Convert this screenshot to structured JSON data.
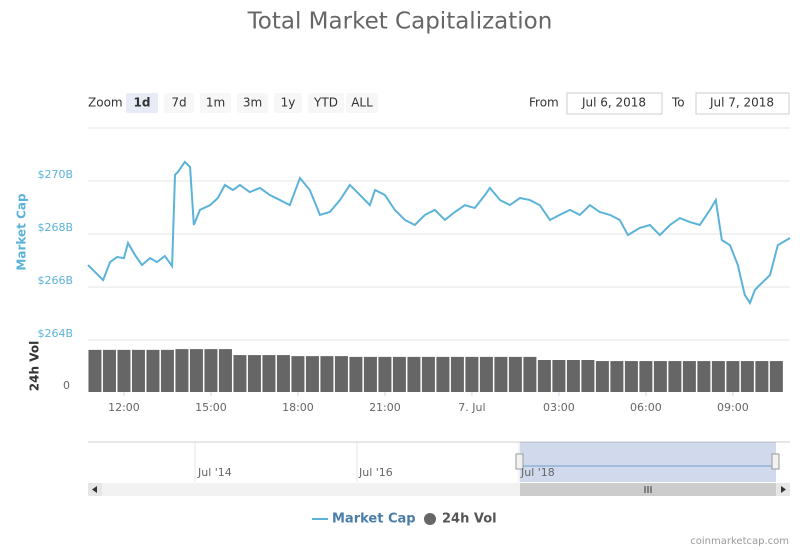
{
  "chart_data": {
    "type": "line",
    "title": "Total Market Capitalization",
    "zoom_label": "Zoom",
    "zoom_buttons": [
      "1d",
      "7d",
      "1m",
      "3m",
      "1y",
      "YTD",
      "ALL"
    ],
    "selected_zoom": 0,
    "range_from_label": "From",
    "range_from": "Jul 6, 2018",
    "range_to_label": "To",
    "range_to": "Jul 7, 2018",
    "xlim": [
      10.76,
      34.97
    ],
    "xticks": [
      {
        "value": 12,
        "label": "12:00"
      },
      {
        "value": 15,
        "label": "15:00"
      },
      {
        "value": 18,
        "label": "18:00"
      },
      {
        "value": 21,
        "label": "21:00"
      },
      {
        "value": 24,
        "label": "7. Jul"
      },
      {
        "value": 27,
        "label": "03:00"
      },
      {
        "value": 30,
        "label": "06:00"
      },
      {
        "value": 33,
        "label": "09:00"
      }
    ],
    "ylabel": "Market Cap",
    "ylim": [
      264,
      272
    ],
    "yticks": [
      {
        "value": 264,
        "label": "$264B"
      },
      {
        "value": 266,
        "label": "$266B"
      },
      {
        "value": 268,
        "label": "$268B"
      },
      {
        "value": 270,
        "label": "$270B"
      }
    ],
    "y2label": "24h Vol",
    "y2lim": [
      0,
      20
    ],
    "y2ticks": [
      0
    ],
    "grid": true,
    "series": [
      {
        "name": "Market Cap",
        "color": "#5cb3d9",
        "x": [
          10.76,
          11.0,
          11.28,
          11.52,
          11.76,
          12.0,
          12.14,
          12.38,
          12.62,
          12.9,
          13.14,
          13.41,
          13.66,
          13.76,
          13.86,
          14.1,
          14.28,
          14.41,
          14.62,
          14.97,
          15.24,
          15.48,
          15.76,
          16.0,
          16.34,
          16.69,
          17.03,
          17.38,
          17.72,
          18.07,
          18.41,
          18.76,
          19.1,
          19.45,
          19.79,
          20.14,
          20.48,
          20.66,
          21.0,
          21.34,
          21.69,
          22.03,
          22.38,
          22.72,
          23.07,
          23.41,
          23.76,
          24.1,
          24.45,
          24.62,
          24.97,
          25.31,
          25.66,
          26.0,
          26.34,
          26.69,
          27.03,
          27.38,
          27.72,
          28.07,
          28.41,
          28.76,
          29.1,
          29.38,
          29.79,
          30.14,
          30.48,
          30.83,
          31.17,
          31.52,
          31.86,
          32.21,
          32.41,
          32.62,
          32.9,
          33.17,
          33.41,
          33.59,
          33.76,
          33.93,
          34.28,
          34.55,
          34.97
        ],
        "values": [
          266.83,
          266.57,
          266.26,
          266.94,
          267.13,
          267.09,
          267.66,
          267.21,
          266.83,
          267.09,
          266.94,
          267.17,
          266.79,
          270.23,
          270.34,
          270.72,
          270.53,
          268.34,
          268.91,
          269.09,
          269.36,
          269.85,
          269.66,
          269.85,
          269.58,
          269.74,
          269.47,
          269.28,
          269.09,
          270.11,
          269.66,
          268.72,
          268.83,
          269.28,
          269.85,
          269.47,
          269.09,
          269.66,
          269.47,
          268.91,
          268.53,
          268.34,
          268.72,
          268.91,
          268.53,
          268.83,
          269.09,
          268.98,
          269.47,
          269.74,
          269.28,
          269.09,
          269.36,
          269.28,
          269.09,
          268.53,
          268.72,
          268.91,
          268.72,
          269.09,
          268.83,
          268.72,
          268.53,
          267.96,
          268.23,
          268.34,
          267.96,
          268.34,
          268.6,
          268.45,
          268.34,
          268.91,
          269.28,
          267.77,
          267.58,
          266.83,
          265.7,
          265.4,
          265.89,
          266.08,
          266.45,
          267.58,
          267.85
        ]
      },
      {
        "name": "24h Vol",
        "type": "bar",
        "axis": "y2",
        "color": "#666666",
        "x": [
          11.0,
          11.5,
          12.0,
          12.5,
          13.0,
          13.5,
          14.0,
          14.5,
          15.0,
          15.5,
          16.0,
          16.5,
          17.0,
          17.5,
          18.0,
          18.5,
          19.0,
          19.5,
          20.0,
          20.5,
          21.0,
          21.5,
          22.0,
          22.5,
          23.0,
          23.5,
          24.0,
          24.5,
          25.0,
          25.5,
          26.0,
          26.5,
          27.0,
          27.5,
          28.0,
          28.5,
          29.0,
          29.5,
          30.0,
          30.5,
          31.0,
          31.5,
          32.0,
          32.5,
          33.0,
          33.5,
          34.0,
          34.5
        ],
        "values": [
          16.2,
          16.2,
          16.2,
          16.2,
          16.2,
          16.2,
          16.5,
          16.5,
          16.5,
          16.5,
          14.2,
          14.2,
          14.2,
          14.2,
          13.8,
          13.8,
          13.8,
          13.8,
          13.5,
          13.5,
          13.5,
          13.5,
          13.5,
          13.5,
          13.5,
          13.5,
          13.5,
          13.5,
          13.5,
          13.5,
          13.5,
          12.3,
          12.3,
          12.3,
          12.3,
          11.9,
          11.9,
          11.9,
          11.9,
          11.9,
          11.9,
          11.9,
          11.9,
          11.9,
          11.9,
          11.9,
          11.9,
          11.9
        ]
      }
    ],
    "navigator_labels": [
      "Jul '14",
      "Jul '16",
      "Jul '18"
    ],
    "credit": "coinmarketcap.com"
  }
}
